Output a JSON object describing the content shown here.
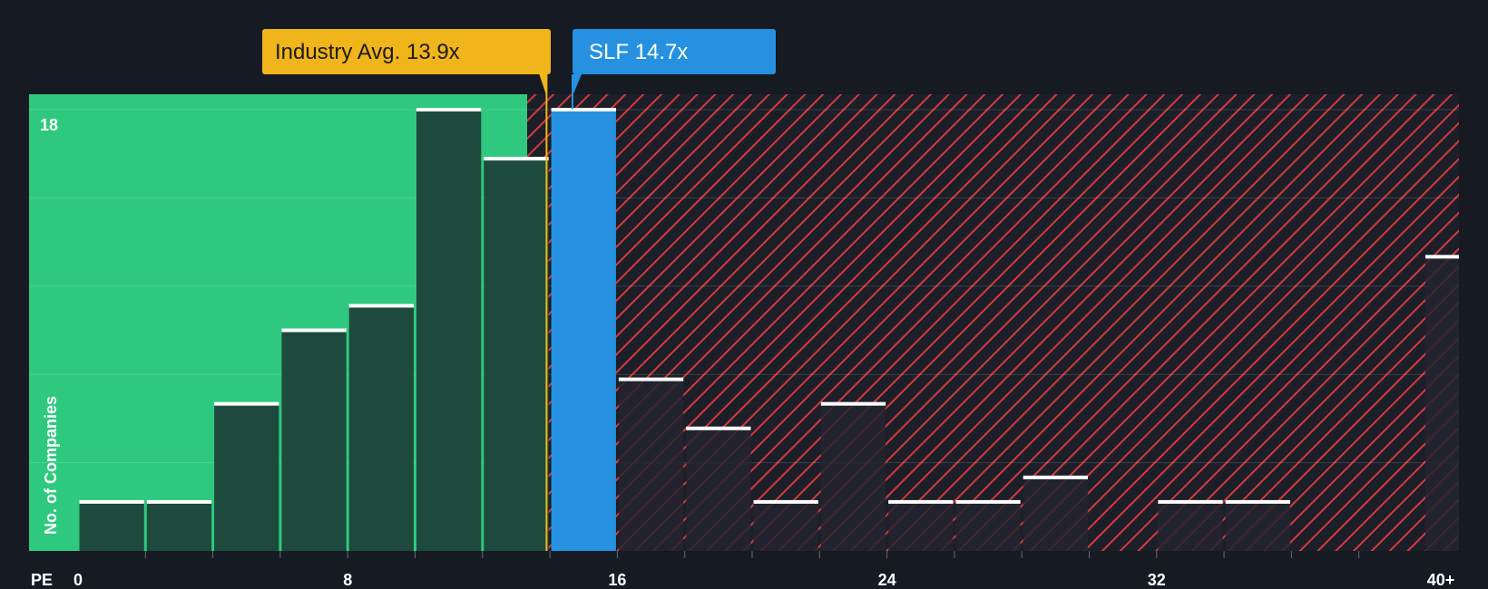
{
  "chart_data": {
    "type": "bar",
    "title": "",
    "xlabel": "PE",
    "ylabel": "No. of Companies",
    "xlim": [
      0,
      40
    ],
    "ylim": [
      0,
      18
    ],
    "bin_width": 2,
    "x_ticks": [
      "0",
      "8",
      "16",
      "24",
      "32",
      "40+"
    ],
    "x_tick_values": [
      0,
      8,
      16,
      24,
      32,
      40
    ],
    "y_tick_label": "18",
    "bins": [
      {
        "x": 0,
        "value": 2
      },
      {
        "x": 2,
        "value": 2
      },
      {
        "x": 4,
        "value": 6
      },
      {
        "x": 6,
        "value": 9
      },
      {
        "x": 8,
        "value": 10
      },
      {
        "x": 10,
        "value": 18
      },
      {
        "x": 12,
        "value": 16
      },
      {
        "x": 14,
        "value": 18
      },
      {
        "x": 16,
        "value": 7
      },
      {
        "x": 18,
        "value": 5
      },
      {
        "x": 20,
        "value": 2
      },
      {
        "x": 22,
        "value": 6
      },
      {
        "x": 24,
        "value": 2
      },
      {
        "x": 26,
        "value": 2
      },
      {
        "x": 28,
        "value": 3
      },
      {
        "x": 30,
        "value": 0
      },
      {
        "x": 32,
        "value": 2
      },
      {
        "x": 34,
        "value": 2
      },
      {
        "x": 36,
        "value": 0
      },
      {
        "x": 38,
        "value": 0
      },
      {
        "x": 40,
        "value": 12
      }
    ],
    "highlight_bin_x": 14,
    "industry_avg": {
      "label": "Industry Avg. 13.9x",
      "value": 13.9
    },
    "company": {
      "label": "SLF 14.7x",
      "value": 14.7
    }
  },
  "colors": {
    "background": "#151a23",
    "fair_zone": "#2ec97e",
    "fair_bar": "#1e4a3e",
    "over_bar": "#232530",
    "hatch": "#d33a3f",
    "company": "#2591e0",
    "industry": "#f0b51a",
    "cap": "#ffffff"
  }
}
